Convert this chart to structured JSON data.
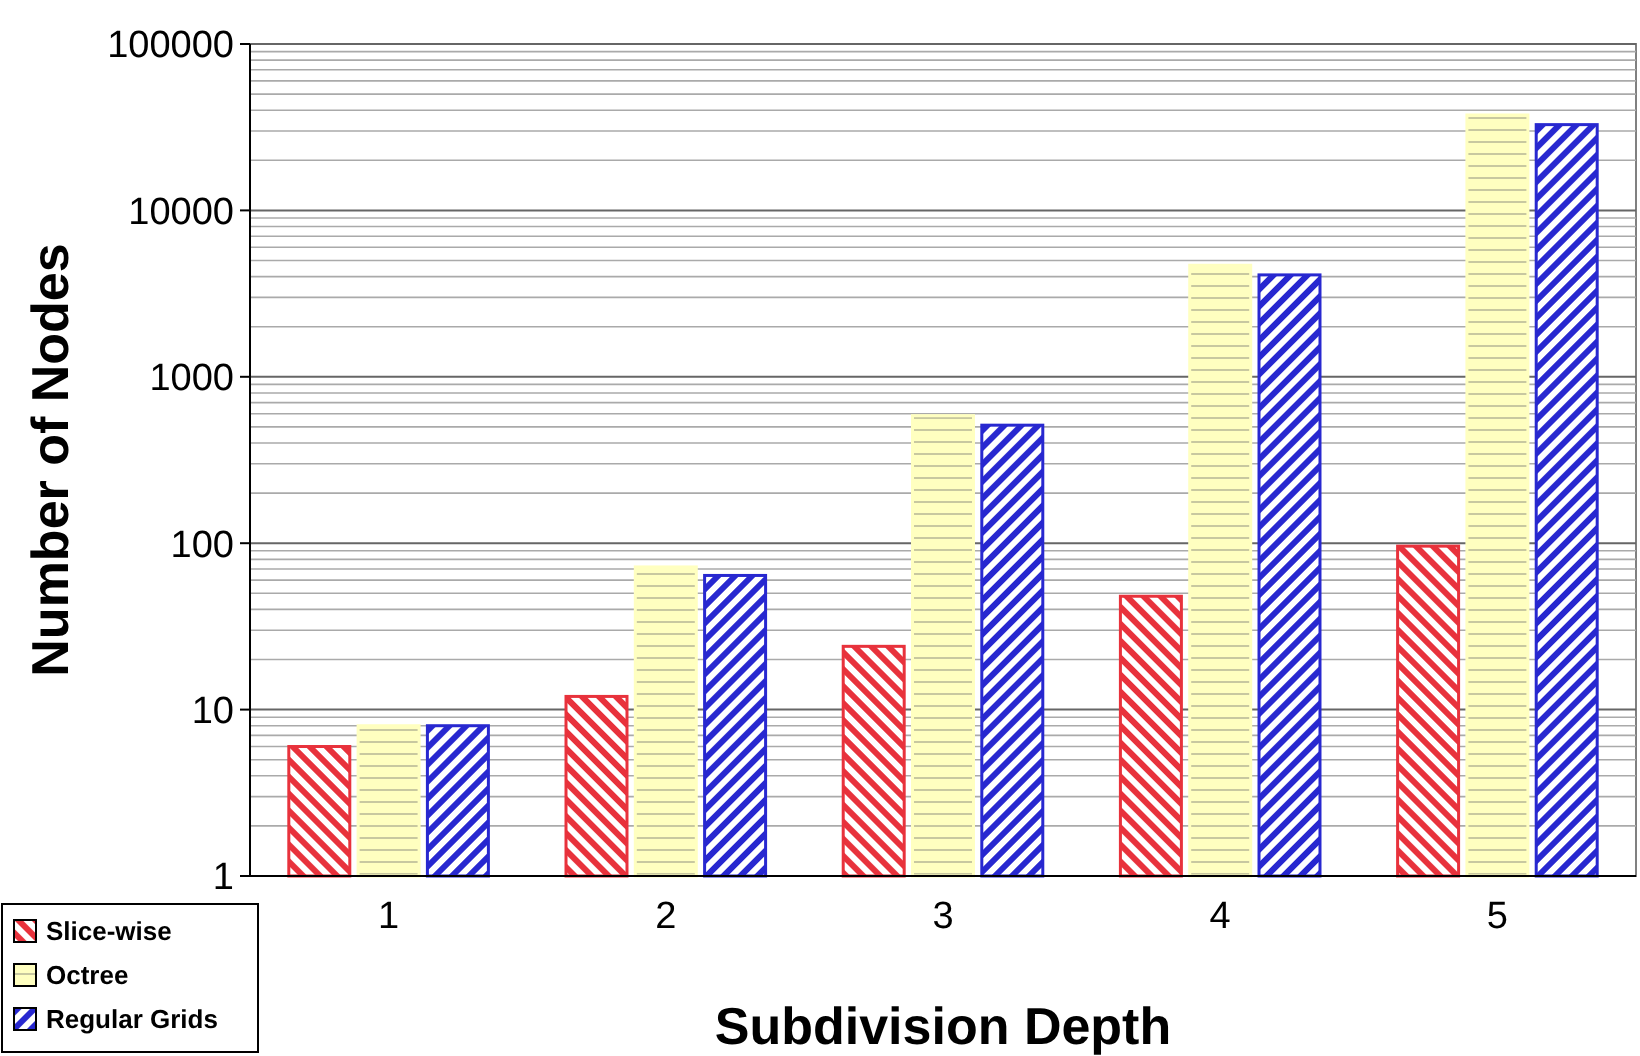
{
  "chart_data": {
    "type": "bar",
    "xlabel": "Subdivision Depth",
    "ylabel": "Number of Nodes",
    "categories": [
      "1",
      "2",
      "3",
      "4",
      "5"
    ],
    "series": [
      {
        "name": "Slice-wise",
        "color": "#e8323c",
        "values": [
          6,
          12,
          24,
          48,
          96
        ]
      },
      {
        "name": "Octree",
        "color": "#ffffc0",
        "values": [
          8,
          72,
          584,
          4680,
          37448
        ]
      },
      {
        "name": "Regular Grids",
        "color": "#2828d0",
        "values": [
          8,
          64,
          512,
          4096,
          32768
        ]
      }
    ],
    "log": true,
    "ylim": [
      1,
      100000
    ],
    "yticks": [
      1,
      10,
      100,
      1000,
      10000,
      100000
    ],
    "grid": "y",
    "legend": "bottom left"
  }
}
